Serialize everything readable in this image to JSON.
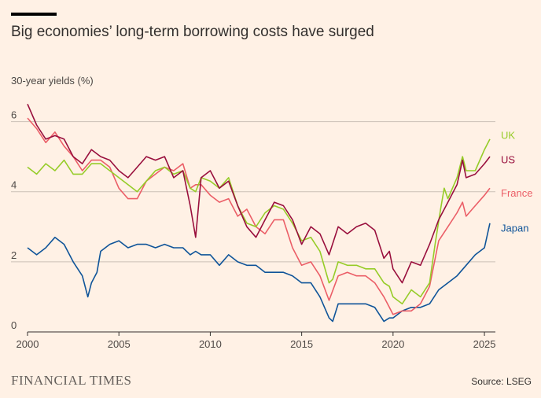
{
  "header": {
    "title": "Big economies’ long-term borrowing costs have surged",
    "ylabel": "30-year yields (%)"
  },
  "footer": {
    "brand": "FINANCIAL TIMES",
    "source": "Source: LSEG"
  },
  "colors": {
    "background": "#fff1e5",
    "grid": "#ccc1b7",
    "axis": "#33302e",
    "UK": "#96cc28",
    "US": "#990f3d",
    "France": "#eb5e67",
    "Japan": "#0f5499"
  },
  "chart_data": {
    "type": "line",
    "title": "Big economies’ long-term borrowing costs have surged",
    "ylabel": "30-year yields (%)",
    "xlim": [
      2000,
      2025.6
    ],
    "ylim": [
      0,
      7
    ],
    "xticks": [
      2000,
      2005,
      2010,
      2015,
      2020,
      2025
    ],
    "yticks": [
      0,
      2,
      4,
      6
    ],
    "grid": true,
    "legend": "direct labels at line ends",
    "series": [
      {
        "name": "UK",
        "x": [
          2000,
          2000.5,
          2001,
          2001.5,
          2002,
          2002.5,
          2003,
          2003.5,
          2004,
          2004.5,
          2005,
          2005.5,
          2006,
          2006.5,
          2007,
          2007.5,
          2008,
          2008.5,
          2008.9,
          2009.2,
          2009.5,
          2010,
          2010.5,
          2011,
          2011.5,
          2012,
          2012.5,
          2013,
          2013.5,
          2014,
          2014.5,
          2015,
          2015.5,
          2016,
          2016.5,
          2016.7,
          2017,
          2017.5,
          2018,
          2018.5,
          2019,
          2019.5,
          2019.8,
          2020,
          2020.5,
          2021,
          2021.5,
          2022,
          2022.3,
          2022.6,
          2022.8,
          2023,
          2023.5,
          2023.8,
          2024,
          2024.5,
          2025,
          2025.3
        ],
        "values": [
          4.7,
          4.5,
          4.8,
          4.6,
          4.9,
          4.5,
          4.5,
          4.8,
          4.8,
          4.6,
          4.4,
          4.2,
          4.0,
          4.3,
          4.6,
          4.7,
          4.5,
          4.6,
          4.1,
          4.0,
          4.4,
          4.3,
          4.1,
          4.4,
          3.6,
          3.1,
          3.0,
          3.4,
          3.6,
          3.5,
          3.1,
          2.6,
          2.7,
          2.3,
          1.4,
          1.5,
          2.0,
          1.9,
          1.9,
          1.8,
          1.8,
          1.4,
          1.3,
          1.0,
          0.8,
          1.2,
          1.0,
          1.4,
          2.5,
          3.5,
          4.1,
          3.8,
          4.4,
          5.0,
          4.6,
          4.6,
          5.2,
          5.5
        ]
      },
      {
        "name": "US",
        "x": [
          2000,
          2000.5,
          2001,
          2001.5,
          2002,
          2002.5,
          2003,
          2003.5,
          2004,
          2004.5,
          2005,
          2005.5,
          2006,
          2006.5,
          2007,
          2007.5,
          2008,
          2008.5,
          2008.9,
          2009.2,
          2009.5,
          2010,
          2010.5,
          2011,
          2011.5,
          2012,
          2012.5,
          2013,
          2013.5,
          2014,
          2014.5,
          2015,
          2015.5,
          2016,
          2016.5,
          2017,
          2017.5,
          2018,
          2018.5,
          2019,
          2019.5,
          2019.8,
          2020,
          2020.5,
          2021,
          2021.5,
          2022,
          2022.5,
          2023,
          2023.5,
          2023.8,
          2024,
          2024.5,
          2025,
          2025.3
        ],
        "values": [
          6.5,
          5.9,
          5.5,
          5.6,
          5.5,
          5.0,
          4.8,
          5.2,
          5.0,
          4.9,
          4.6,
          4.4,
          4.7,
          5.0,
          4.9,
          5.0,
          4.4,
          4.6,
          3.6,
          2.7,
          4.4,
          4.6,
          4.1,
          4.3,
          3.6,
          3.0,
          2.7,
          3.2,
          3.7,
          3.6,
          3.2,
          2.5,
          3.0,
          2.8,
          2.2,
          3.0,
          2.8,
          3.0,
          3.1,
          2.9,
          2.1,
          2.3,
          1.8,
          1.4,
          2.0,
          1.9,
          2.5,
          3.2,
          3.7,
          4.2,
          4.9,
          4.4,
          4.5,
          4.8,
          5.0
        ]
      },
      {
        "name": "France",
        "x": [
          2000,
          2000.5,
          2001,
          2001.5,
          2002,
          2002.5,
          2003,
          2003.5,
          2004,
          2004.5,
          2005,
          2005.5,
          2006,
          2006.5,
          2007,
          2007.5,
          2008,
          2008.5,
          2008.9,
          2009.2,
          2009.5,
          2010,
          2010.5,
          2011,
          2011.5,
          2012,
          2012.5,
          2013,
          2013.5,
          2014,
          2014.5,
          2015,
          2015.5,
          2016,
          2016.5,
          2017,
          2017.5,
          2018,
          2018.5,
          2019,
          2019.5,
          2019.8,
          2020,
          2020.5,
          2021,
          2021.5,
          2022,
          2022.5,
          2023,
          2023.5,
          2023.8,
          2024,
          2024.5,
          2025,
          2025.3
        ],
        "values": [
          6.1,
          5.8,
          5.4,
          5.7,
          5.3,
          5.0,
          4.6,
          4.9,
          4.9,
          4.7,
          4.1,
          3.8,
          3.8,
          4.3,
          4.5,
          4.7,
          4.6,
          4.8,
          4.1,
          4.2,
          4.2,
          3.9,
          3.7,
          3.8,
          3.3,
          3.5,
          3.0,
          2.8,
          3.2,
          3.2,
          2.4,
          1.9,
          2.0,
          1.6,
          0.9,
          1.6,
          1.7,
          1.6,
          1.6,
          1.4,
          1.0,
          0.7,
          0.5,
          0.6,
          0.6,
          0.8,
          1.3,
          2.6,
          3.0,
          3.4,
          3.7,
          3.3,
          3.6,
          3.9,
          4.1
        ]
      },
      {
        "name": "Japan",
        "x": [
          2000,
          2000.5,
          2001,
          2001.5,
          2002,
          2002.5,
          2003,
          2003.3,
          2003.5,
          2003.8,
          2004,
          2004.5,
          2005,
          2005.5,
          2006,
          2006.5,
          2007,
          2007.5,
          2008,
          2008.5,
          2008.9,
          2009.2,
          2009.5,
          2010,
          2010.5,
          2011,
          2011.5,
          2012,
          2012.5,
          2013,
          2013.5,
          2014,
          2014.5,
          2015,
          2015.5,
          2016,
          2016.5,
          2016.7,
          2017,
          2017.5,
          2018,
          2018.5,
          2019,
          2019.5,
          2019.8,
          2020,
          2020.5,
          2021,
          2021.5,
          2022,
          2022.5,
          2023,
          2023.5,
          2024,
          2024.5,
          2025,
          2025.3
        ],
        "values": [
          2.4,
          2.2,
          2.4,
          2.7,
          2.5,
          2.0,
          1.6,
          1.0,
          1.4,
          1.7,
          2.3,
          2.5,
          2.6,
          2.4,
          2.5,
          2.5,
          2.4,
          2.5,
          2.4,
          2.4,
          2.2,
          2.3,
          2.2,
          2.2,
          1.9,
          2.2,
          2.0,
          1.9,
          1.9,
          1.7,
          1.7,
          1.7,
          1.6,
          1.4,
          1.4,
          1.0,
          0.4,
          0.3,
          0.8,
          0.8,
          0.8,
          0.8,
          0.7,
          0.3,
          0.4,
          0.4,
          0.6,
          0.7,
          0.7,
          0.8,
          1.2,
          1.4,
          1.6,
          1.9,
          2.2,
          2.4,
          3.1
        ]
      }
    ]
  }
}
